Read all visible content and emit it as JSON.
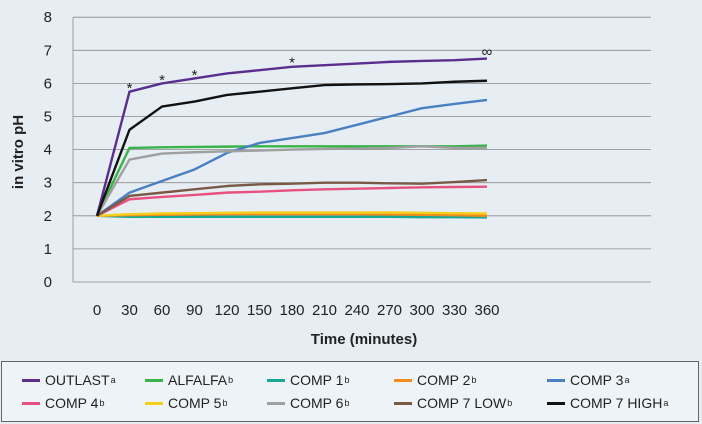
{
  "chart_data": {
    "type": "line",
    "ylabel": "in vitro pH",
    "xlabel": "Time (minutes)",
    "ylim": [
      0,
      8
    ],
    "y_ticks": [
      "0",
      "1",
      "2",
      "3",
      "4",
      "5",
      "6",
      "7",
      "8"
    ],
    "x": [
      0,
      30,
      60,
      90,
      120,
      150,
      180,
      210,
      240,
      270,
      300,
      330,
      360
    ],
    "x_ticks": [
      "0",
      "30",
      "60",
      "90",
      "120",
      "150",
      "180",
      "210",
      "240",
      "270",
      "300",
      "330",
      "360"
    ],
    "grid": "horizontal",
    "legend_position": "bottom",
    "annotations": [
      {
        "text": "*",
        "x": 30,
        "y": 5.95
      },
      {
        "text": "*",
        "x": 60,
        "y": 6.2
      },
      {
        "text": "*",
        "x": 90,
        "y": 6.35
      },
      {
        "text": "*",
        "x": 180,
        "y": 6.72
      },
      {
        "text": "∞",
        "x": 360,
        "y": 7.05
      }
    ],
    "series": [
      {
        "name": "OUTLAST",
        "sup": "a",
        "color": "#5b2d8e",
        "values": [
          2.0,
          5.75,
          6.0,
          6.15,
          6.3,
          6.4,
          6.5,
          6.55,
          6.6,
          6.65,
          6.68,
          6.7,
          6.75
        ]
      },
      {
        "name": "ALFALFA",
        "sup": "b",
        "color": "#3bb24a",
        "values": [
          2.0,
          4.05,
          4.07,
          4.08,
          4.09,
          4.1,
          4.1,
          4.1,
          4.1,
          4.1,
          4.1,
          4.1,
          4.12
        ]
      },
      {
        "name": "COMP 1",
        "sup": "b",
        "color": "#1aa896",
        "values": [
          2.0,
          1.97,
          1.97,
          1.97,
          1.97,
          1.97,
          1.97,
          1.97,
          1.97,
          1.97,
          1.96,
          1.96,
          1.95
        ]
      },
      {
        "name": "COMP 2",
        "sup": "b",
        "color": "#f08c1e",
        "values": [
          2.0,
          2.02,
          2.03,
          2.04,
          2.05,
          2.05,
          2.05,
          2.05,
          2.05,
          2.04,
          2.03,
          2.02,
          2.0
        ]
      },
      {
        "name": "COMP 3",
        "sup": "a",
        "color": "#4a7fc1",
        "values": [
          2.0,
          2.7,
          3.05,
          3.4,
          3.9,
          4.2,
          4.35,
          4.5,
          4.75,
          5.0,
          5.25,
          5.38,
          5.5
        ]
      },
      {
        "name": "COMP 4",
        "sup": "b",
        "color": "#e8507f",
        "values": [
          2.0,
          2.5,
          2.57,
          2.63,
          2.7,
          2.73,
          2.77,
          2.8,
          2.82,
          2.84,
          2.86,
          2.87,
          2.88
        ]
      },
      {
        "name": "COMP 5",
        "sup": "b",
        "color": "#f6cf1c",
        "values": [
          2.0,
          2.05,
          2.07,
          2.08,
          2.09,
          2.1,
          2.1,
          2.1,
          2.1,
          2.1,
          2.09,
          2.08,
          2.07
        ]
      },
      {
        "name": "COMP 6",
        "sup": "b",
        "color": "#a0a0a0",
        "values": [
          2.0,
          3.7,
          3.88,
          3.92,
          3.95,
          3.97,
          4.0,
          4.02,
          4.03,
          4.05,
          4.1,
          4.05,
          4.05
        ]
      },
      {
        "name": "COMP 7 LOW",
        "sup": "b",
        "color": "#7a5a44",
        "values": [
          2.0,
          2.6,
          2.7,
          2.8,
          2.9,
          2.95,
          2.97,
          3.0,
          3.0,
          2.98,
          2.97,
          3.02,
          3.08
        ]
      },
      {
        "name": "COMP 7 HIGH",
        "sup": "a",
        "color": "#111111",
        "values": [
          2.0,
          4.6,
          5.3,
          5.45,
          5.65,
          5.75,
          5.85,
          5.95,
          5.97,
          5.98,
          6.0,
          6.05,
          6.08
        ]
      }
    ]
  }
}
